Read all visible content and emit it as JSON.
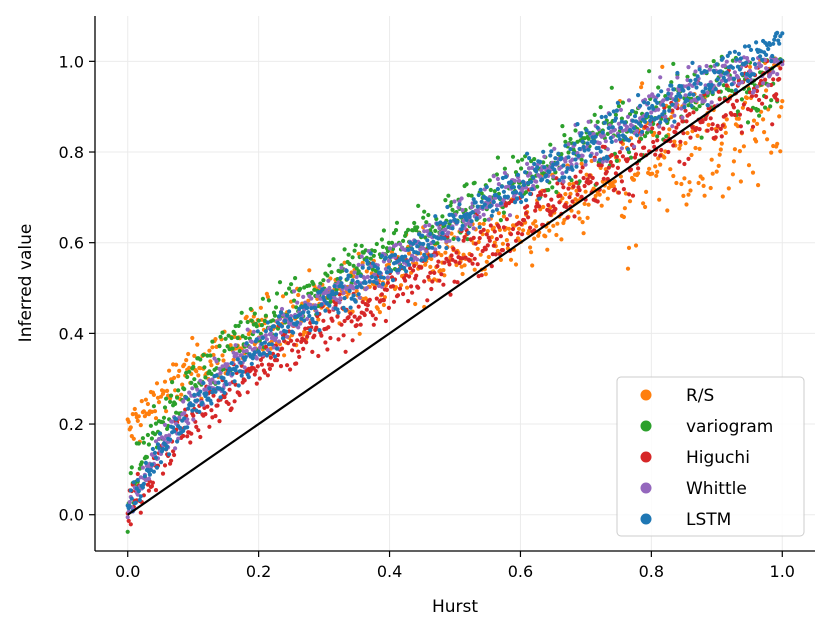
{
  "chart_data": {
    "type": "scatter",
    "title": "",
    "xlabel": "Hurst",
    "ylabel": "Inferred value",
    "xlim": [
      -0.05,
      1.05
    ],
    "ylim": [
      -0.08,
      1.1
    ],
    "xticks": [
      0.0,
      0.2,
      0.4,
      0.6,
      0.8,
      1.0
    ],
    "yticks": [
      0.0,
      0.2,
      0.4,
      0.6,
      0.8,
      1.0
    ],
    "xtick_labels": [
      "0.0",
      "0.2",
      "0.4",
      "0.6",
      "0.8",
      "1.0"
    ],
    "ytick_labels": [
      "0.0",
      "0.2",
      "0.4",
      "0.6",
      "0.8",
      "1.0"
    ],
    "grid": true,
    "legend_position": "bottom-right",
    "reference_line": {
      "x": [
        0.0,
        1.0
      ],
      "y": [
        0.0,
        1.0
      ],
      "color": "#000000"
    },
    "series": [
      {
        "name": "R/S",
        "color": "#ff7f0e",
        "spread": 0.03,
        "max": 1.0,
        "x": [
          0.0,
          0.05,
          0.1,
          0.2,
          0.3,
          0.4,
          0.5,
          0.6,
          0.7,
          0.8,
          0.9,
          1.0
        ],
        "y": [
          0.18,
          0.26,
          0.32,
          0.4,
          0.47,
          0.53,
          0.58,
          0.63,
          0.7,
          0.76,
          0.83,
          0.9
        ]
      },
      {
        "name": "variogram",
        "color": "#2ca02c",
        "spread": 0.025,
        "max": 1.0,
        "x": [
          0.0,
          0.02,
          0.05,
          0.1,
          0.2,
          0.3,
          0.4,
          0.5,
          0.6,
          0.7,
          0.8,
          0.9,
          1.0
        ],
        "y": [
          0.02,
          0.13,
          0.2,
          0.3,
          0.42,
          0.51,
          0.59,
          0.66,
          0.74,
          0.81,
          0.88,
          0.94,
          0.98
        ]
      },
      {
        "name": "Higuchi",
        "color": "#d62728",
        "spread": 0.025,
        "max": 1.0,
        "x": [
          0.0,
          0.02,
          0.05,
          0.1,
          0.2,
          0.3,
          0.4,
          0.5,
          0.6,
          0.7,
          0.8,
          0.9,
          1.0
        ],
        "y": [
          0.01,
          0.06,
          0.13,
          0.21,
          0.32,
          0.41,
          0.49,
          0.57,
          0.65,
          0.73,
          0.82,
          0.89,
          0.96
        ]
      },
      {
        "name": "Whittle",
        "color": "#9467bd",
        "spread": 0.018,
        "max": 1.0,
        "x": [
          0.0,
          0.02,
          0.05,
          0.1,
          0.2,
          0.3,
          0.4,
          0.5,
          0.6,
          0.7,
          0.8,
          0.9,
          1.0
        ],
        "y": [
          0.01,
          0.08,
          0.15,
          0.25,
          0.38,
          0.48,
          0.56,
          0.64,
          0.73,
          0.81,
          0.89,
          0.96,
          1.0
        ]
      },
      {
        "name": "LSTM",
        "color": "#1f77b4",
        "spread": 0.018,
        "max": 1.06,
        "x": [
          0.0,
          0.02,
          0.05,
          0.1,
          0.2,
          0.3,
          0.4,
          0.5,
          0.6,
          0.7,
          0.8,
          0.9,
          1.0
        ],
        "y": [
          0.01,
          0.07,
          0.14,
          0.24,
          0.37,
          0.47,
          0.55,
          0.64,
          0.73,
          0.81,
          0.89,
          0.97,
          1.04
        ]
      }
    ]
  }
}
